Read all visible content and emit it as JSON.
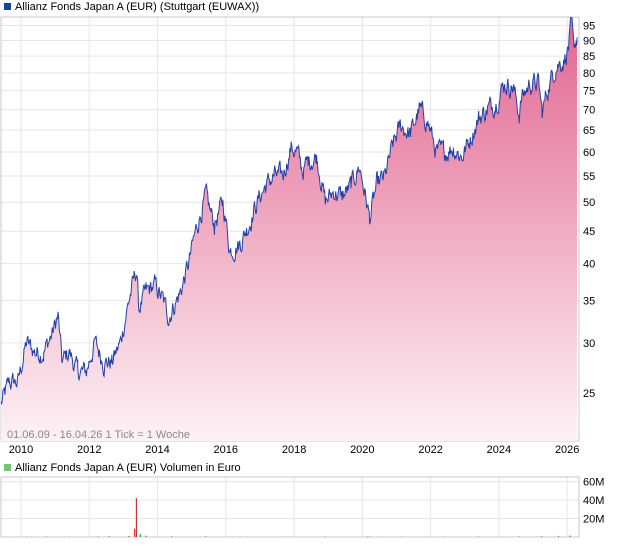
{
  "chart_data": [
    {
      "type": "area",
      "title": "Allianz Fonds Japan A (EUR) (Stuttgart (EUWAX))",
      "footer": "01.06.09 - 16.04.26   1 Tick = 1 Woche",
      "y_scale": "log",
      "ylim": [
        21,
        98
      ],
      "y_ticks": [
        25,
        30,
        35,
        40,
        45,
        50,
        55,
        60,
        65,
        70,
        75,
        80,
        85,
        90,
        95
      ],
      "x_ticks": [
        "2010",
        "2012",
        "2014",
        "2016",
        "2018",
        "2020",
        "2022",
        "2024",
        "2026"
      ],
      "x_range": [
        "2009-06-01",
        "2026-04-16"
      ],
      "grid": true,
      "legend_color": "#1f3fa0",
      "line_color": "#2340a8",
      "fill_top_color": "#e2638f",
      "fill_bottom_color": "#fdf2f6",
      "points": [
        [
          "2009-06-01",
          24
        ],
        [
          "2009-09-01",
          26
        ],
        [
          "2009-12-01",
          26
        ],
        [
          "2010-03-01",
          30
        ],
        [
          "2010-06-01",
          29
        ],
        [
          "2010-09-01",
          29
        ],
        [
          "2010-12-01",
          31
        ],
        [
          "2011-02-01",
          33
        ],
        [
          "2011-03-15",
          28
        ],
        [
          "2011-06-01",
          29
        ],
        [
          "2011-09-01",
          27
        ],
        [
          "2011-12-01",
          27
        ],
        [
          "2012-03-01",
          30
        ],
        [
          "2012-06-01",
          28
        ],
        [
          "2012-09-01",
          28
        ],
        [
          "2012-12-01",
          30
        ],
        [
          "2013-03-01",
          35
        ],
        [
          "2013-05-20",
          39
        ],
        [
          "2013-06-15",
          34
        ],
        [
          "2013-09-01",
          36
        ],
        [
          "2013-12-01",
          37
        ],
        [
          "2014-03-01",
          35
        ],
        [
          "2014-05-01",
          33
        ],
        [
          "2014-09-01",
          36
        ],
        [
          "2014-12-01",
          40
        ],
        [
          "2015-03-01",
          46
        ],
        [
          "2015-06-01",
          51
        ],
        [
          "2015-09-01",
          46
        ],
        [
          "2015-12-01",
          50
        ],
        [
          "2016-02-15",
          42
        ],
        [
          "2016-06-01",
          43
        ],
        [
          "2016-09-01",
          46
        ],
        [
          "2016-12-01",
          50
        ],
        [
          "2017-03-01",
          53
        ],
        [
          "2017-06-01",
          55
        ],
        [
          "2017-09-01",
          55
        ],
        [
          "2017-12-01",
          61
        ],
        [
          "2018-02-01",
          60
        ],
        [
          "2018-04-01",
          56
        ],
        [
          "2018-06-01",
          58
        ],
        [
          "2018-09-01",
          59
        ],
        [
          "2018-12-01",
          50
        ],
        [
          "2019-03-01",
          52
        ],
        [
          "2019-06-01",
          51
        ],
        [
          "2019-09-01",
          53
        ],
        [
          "2019-12-01",
          57
        ],
        [
          "2020-03-20",
          47
        ],
        [
          "2020-06-01",
          53
        ],
        [
          "2020-09-01",
          55
        ],
        [
          "2020-12-01",
          62
        ],
        [
          "2021-02-15",
          66
        ],
        [
          "2021-06-01",
          64
        ],
        [
          "2021-09-01",
          70
        ],
        [
          "2021-12-01",
          67
        ],
        [
          "2022-03-01",
          60
        ],
        [
          "2022-06-01",
          60
        ],
        [
          "2022-09-01",
          61
        ],
        [
          "2022-12-01",
          59
        ],
        [
          "2023-03-01",
          63
        ],
        [
          "2023-06-01",
          68
        ],
        [
          "2023-09-01",
          70
        ],
        [
          "2023-12-01",
          72
        ],
        [
          "2024-03-01",
          77
        ],
        [
          "2024-06-01",
          76
        ],
        [
          "2024-08-05",
          69
        ],
        [
          "2024-09-01",
          73
        ],
        [
          "2024-12-01",
          77
        ],
        [
          "2025-03-01",
          77
        ],
        [
          "2025-04-08",
          69
        ],
        [
          "2025-06-01",
          75
        ],
        [
          "2025-09-01",
          82
        ],
        [
          "2025-12-01",
          84
        ],
        [
          "2026-01-15",
          88
        ],
        [
          "2026-02-15",
          96
        ],
        [
          "2026-03-10",
          87
        ],
        [
          "2026-04-16",
          91
        ]
      ]
    },
    {
      "type": "bar",
      "title": "Allianz Fonds Japan A (EUR) Volumen in Euro",
      "legend_color": "#74c474",
      "ylim": [
        0,
        65
      ],
      "y_ticks": [
        20,
        40,
        60
      ],
      "y_tick_labels": [
        "20M",
        "40M",
        "60M"
      ],
      "bars": [
        [
          "2010-03-01",
          0.4,
          "#d03030"
        ],
        [
          "2010-10-01",
          0.5,
          "#30a030"
        ],
        [
          "2011-06-01",
          0.3,
          "#d03030"
        ],
        [
          "2012-04-01",
          0.6,
          "#d03030"
        ],
        [
          "2012-08-01",
          0.8,
          "#30a030"
        ],
        [
          "2013-03-01",
          1.0,
          "#d03030"
        ],
        [
          "2013-05-01",
          9,
          "#d03030"
        ],
        [
          "2013-05-20",
          42,
          "#d03030"
        ],
        [
          "2013-07-01",
          3,
          "#30a030"
        ],
        [
          "2013-09-01",
          1.5,
          "#30a030"
        ],
        [
          "2014-06-01",
          0.6,
          "#d03030"
        ],
        [
          "2015-06-01",
          0.7,
          "#30a030"
        ],
        [
          "2016-06-01",
          0.5,
          "#30a030"
        ],
        [
          "2017-09-01",
          0.4,
          "#30a030"
        ],
        [
          "2018-12-01",
          0.4,
          "#d03030"
        ],
        [
          "2020-03-01",
          0.6,
          "#d03030"
        ],
        [
          "2021-03-01",
          0.4,
          "#30a030"
        ],
        [
          "2022-06-01",
          0.3,
          "#30a030"
        ],
        [
          "2023-06-01",
          0.5,
          "#30a030"
        ],
        [
          "2024-08-01",
          0.6,
          "#d03030"
        ],
        [
          "2025-04-01",
          0.7,
          "#d03030"
        ],
        [
          "2025-10-01",
          1.2,
          "#30a030"
        ],
        [
          "2026-02-01",
          1.6,
          "#30a030"
        ]
      ]
    }
  ]
}
